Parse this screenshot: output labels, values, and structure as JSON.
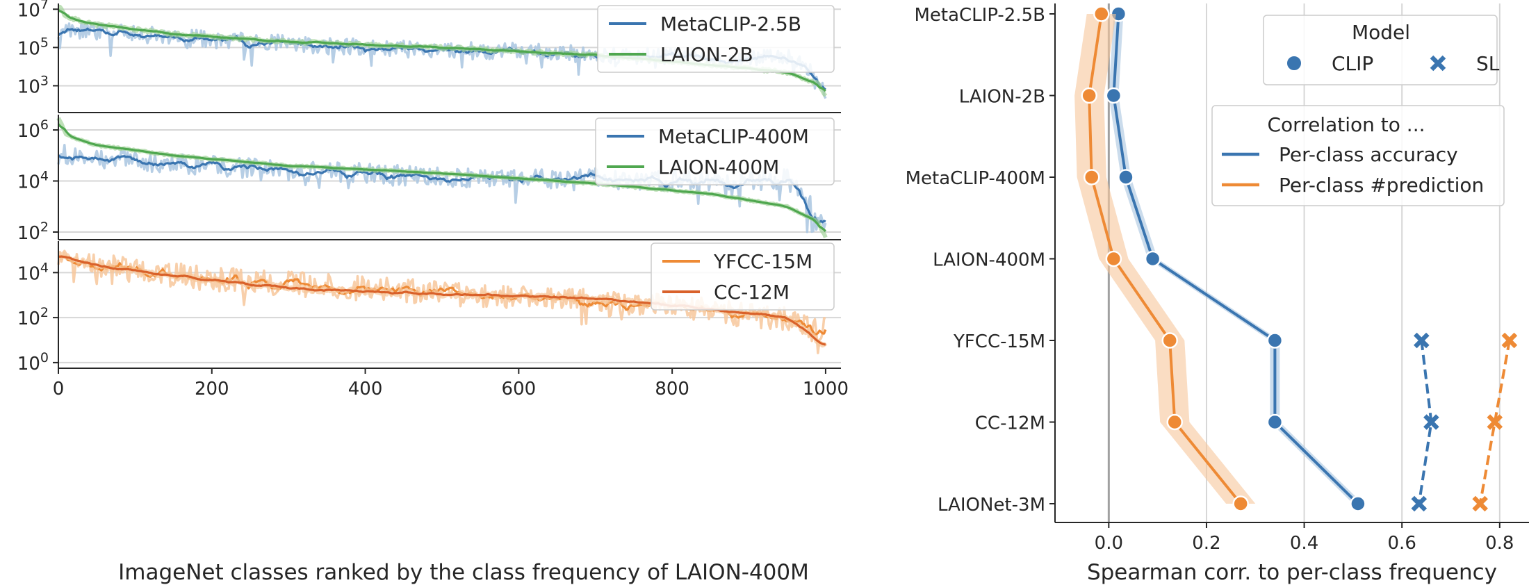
{
  "colors": {
    "blue": "#3a75b0",
    "blue_light": "#a9c5e0",
    "green": "#4fa74f",
    "green_light": "#a3d39a",
    "orange": "#ee8a35",
    "orange_light": "#f7c79b",
    "dark_orange": "#d9612a",
    "grid": "#d6d6d6",
    "axis": "#262626"
  },
  "chart_data": [
    {
      "id": "left_top",
      "type": "line",
      "yscale": "log",
      "ylim_log10": [
        1.6,
        7.3
      ],
      "yticks": [
        {
          "exp": 3,
          "label": "10",
          "sup": "3"
        },
        {
          "exp": 5,
          "label": "10",
          "sup": "5"
        },
        {
          "exp": 7,
          "label": "10",
          "sup": "7"
        }
      ],
      "xlim": [
        0,
        1020
      ],
      "xticks": [],
      "series": [
        {
          "name": "MetaCLIP-2.5B",
          "color": "blue",
          "key": [
            [
              0,
              6.0
            ],
            [
              100,
              5.7
            ],
            [
              200,
              5.4
            ],
            [
              300,
              5.2
            ],
            [
              400,
              5.0
            ],
            [
              500,
              4.85
            ],
            [
              600,
              4.8
            ],
            [
              700,
              4.65
            ],
            [
              800,
              4.5
            ],
            [
              900,
              4.4
            ],
            [
              950,
              4.6
            ],
            [
              980,
              3.8
            ],
            [
              1000,
              2.8
            ]
          ],
          "noise": 0.45,
          "seed": 11
        },
        {
          "name": "LAION-2B",
          "color": "green",
          "key": [
            [
              0,
              7.2
            ],
            [
              10,
              6.6
            ],
            [
              50,
              6.2
            ],
            [
              150,
              5.7
            ],
            [
              300,
              5.3
            ],
            [
              500,
              5.0
            ],
            [
              700,
              4.6
            ],
            [
              850,
              4.1
            ],
            [
              950,
              3.7
            ],
            [
              990,
              3.1
            ],
            [
              1000,
              2.4
            ]
          ],
          "noise": 0.08,
          "seed": 21
        }
      ],
      "legend": [
        {
          "label": "MetaCLIP-2.5B",
          "color": "blue"
        },
        {
          "label": "LAION-2B",
          "color": "green"
        }
      ]
    },
    {
      "id": "left_mid",
      "type": "line",
      "yscale": "log",
      "ylim_log10": [
        1.7,
        6.6
      ],
      "yticks": [
        {
          "exp": 2,
          "label": "10",
          "sup": "2"
        },
        {
          "exp": 4,
          "label": "10",
          "sup": "4"
        },
        {
          "exp": 6,
          "label": "10",
          "sup": "6"
        }
      ],
      "xlim": [
        0,
        1020
      ],
      "xticks": [],
      "series": [
        {
          "name": "MetaCLIP-400M",
          "color": "blue",
          "key": [
            [
              0,
              5.05
            ],
            [
              100,
              4.8
            ],
            [
              200,
              4.6
            ],
            [
              300,
              4.4
            ],
            [
              400,
              4.3
            ],
            [
              500,
              4.15
            ],
            [
              600,
              4.1
            ],
            [
              700,
              4.1
            ],
            [
              800,
              4.0
            ],
            [
              900,
              4.0
            ],
            [
              950,
              4.1
            ],
            [
              980,
              3.0
            ],
            [
              1000,
              2.1
            ]
          ],
          "noise": 0.4,
          "seed": 31
        },
        {
          "name": "LAION-400M",
          "color": "green",
          "key": [
            [
              0,
              6.5
            ],
            [
              10,
              5.8
            ],
            [
              50,
              5.4
            ],
            [
              150,
              5.0
            ],
            [
              300,
              4.6
            ],
            [
              500,
              4.3
            ],
            [
              700,
              3.9
            ],
            [
              850,
              3.5
            ],
            [
              950,
              3.0
            ],
            [
              990,
              2.4
            ],
            [
              1000,
              1.8
            ]
          ],
          "noise": 0.03,
          "seed": 41
        }
      ],
      "legend": [
        {
          "label": "MetaCLIP-400M",
          "color": "blue"
        },
        {
          "label": "LAION-400M",
          "color": "green"
        }
      ]
    },
    {
      "id": "left_bot",
      "type": "line",
      "yscale": "log",
      "ylim_log10": [
        -0.25,
        5.4
      ],
      "yticks": [
        {
          "exp": 0,
          "label": "10",
          "sup": "0"
        },
        {
          "exp": 2,
          "label": "10",
          "sup": "2"
        },
        {
          "exp": 4,
          "label": "10",
          "sup": "4"
        }
      ],
      "xlim": [
        0,
        1020
      ],
      "xticks": [
        0,
        200,
        400,
        600,
        800,
        1000
      ],
      "xlabel": "ImageNet classes ranked by the class frequency of LAION-400M",
      "series": [
        {
          "name": "YFCC-15M",
          "color": "orange",
          "key": [
            [
              0,
              4.9
            ],
            [
              50,
              4.3
            ],
            [
              200,
              3.7
            ],
            [
              400,
              3.3
            ],
            [
              600,
              2.9
            ],
            [
              800,
              2.5
            ],
            [
              950,
              1.9
            ],
            [
              1000,
              1.5
            ]
          ],
          "noise": 0.55,
          "seed": 51
        },
        {
          "name": "CC-12M",
          "color": "dark_orange",
          "key": [
            [
              0,
              4.8
            ],
            [
              50,
              4.3
            ],
            [
              150,
              3.85
            ],
            [
              300,
              3.3
            ],
            [
              500,
              3.05
            ],
            [
              700,
              2.85
            ],
            [
              850,
              2.4
            ],
            [
              950,
              2.0
            ],
            [
              1000,
              0.7
            ]
          ],
          "noise": 0.12,
          "seed": 61
        }
      ],
      "legend": [
        {
          "label": "YFCC-15M",
          "color": "orange"
        },
        {
          "label": "CC-12M",
          "color": "dark_orange"
        }
      ]
    },
    {
      "id": "right",
      "type": "line",
      "xlabel": "Spearman corr. to per-class frequency",
      "xlim": [
        -0.11,
        0.86
      ],
      "xticks": [
        {
          "v": 0.0,
          "label": "0.0"
        },
        {
          "v": 0.2,
          "label": "0.2"
        },
        {
          "v": 0.4,
          "label": "0.4"
        },
        {
          "v": 0.6,
          "label": "0.6"
        },
        {
          "v": 0.8,
          "label": "0.8"
        }
      ],
      "categories": [
        "MetaCLIP-2.5B",
        "LAION-2B",
        "MetaCLIP-400M",
        "LAION-400M",
        "YFCC-15M",
        "CC-12M",
        "LAIONet-3M"
      ],
      "series": [
        {
          "name": "CLIP / Per-class accuracy",
          "model": "CLIP",
          "metric": "accuracy",
          "color": "blue",
          "marker": "circle",
          "dashed": false,
          "values": [
            0.02,
            0.01,
            0.035,
            0.09,
            0.34,
            0.34,
            0.51
          ],
          "band": 0.01
        },
        {
          "name": "CLIP / Per-class #prediction",
          "model": "CLIP",
          "metric": "prediction",
          "color": "orange",
          "marker": "circle",
          "dashed": false,
          "values": [
            -0.015,
            -0.04,
            -0.035,
            0.01,
            0.125,
            0.135,
            0.27
          ],
          "band": 0.03
        },
        {
          "name": "SL / Per-class accuracy",
          "model": "SL",
          "metric": "accuracy",
          "color": "blue",
          "marker": "x",
          "dashed": true,
          "values": [
            null,
            null,
            null,
            null,
            0.64,
            0.66,
            0.635
          ]
        },
        {
          "name": "SL / Per-class #prediction",
          "model": "SL",
          "metric": "prediction",
          "color": "orange",
          "marker": "x",
          "dashed": true,
          "values": [
            null,
            null,
            null,
            null,
            0.82,
            0.79,
            0.76
          ]
        }
      ],
      "legend_model": {
        "title": "Model",
        "items": [
          {
            "label": "CLIP",
            "marker": "circle"
          },
          {
            "label": "SL",
            "marker": "x"
          }
        ]
      },
      "legend_corr": {
        "title": "Correlation to ...",
        "items": [
          {
            "label": "Per-class accuracy",
            "color": "blue"
          },
          {
            "label": "Per-class #prediction",
            "color": "orange"
          }
        ]
      }
    }
  ]
}
